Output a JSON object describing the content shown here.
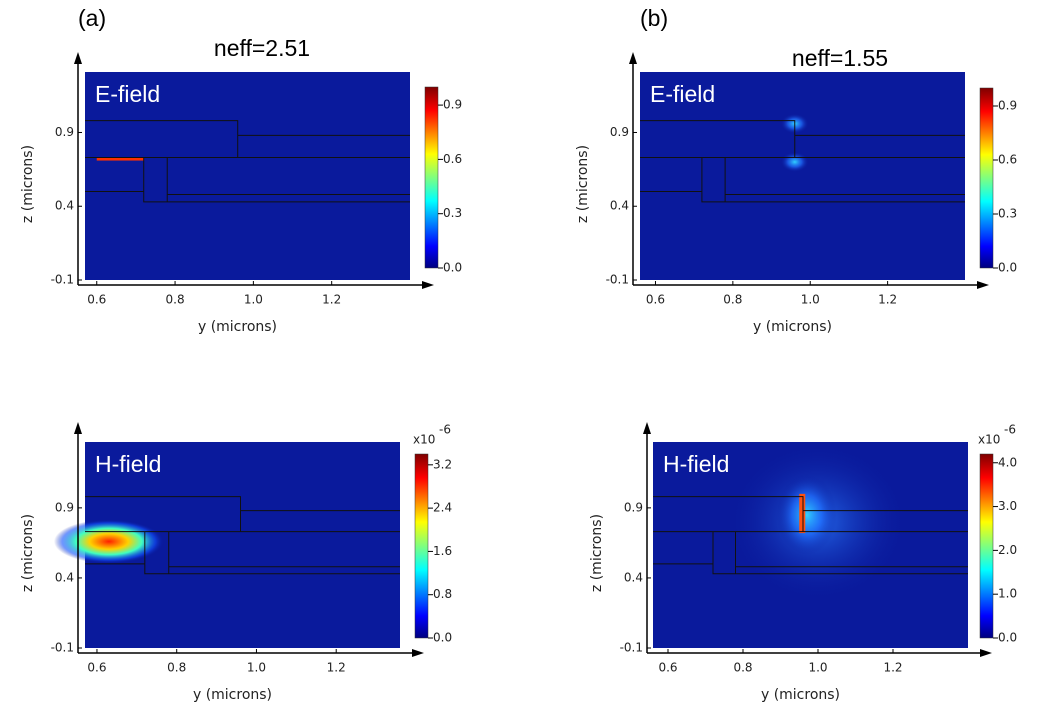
{
  "panels": [
    {
      "label": "(a)",
      "title": "neff=2.51",
      "field": "E-field",
      "x_label": "y  (microns)",
      "y_label": "z  (microns)",
      "xlim": [
        0.57,
        1.4
      ],
      "ylim": [
        -0.1,
        1.31
      ],
      "xticks": [
        0.6,
        0.8,
        {
          "value": 1,
          "label": "1.0"
        },
        1.2
      ],
      "yticks": [
        0.9,
        0.4,
        -0.1
      ],
      "colorbar_lim": [
        0,
        1
      ],
      "colorbar_ticks": [
        {
          "value": 0,
          "label": "0.0"
        },
        0.3,
        0.6,
        0.9
      ]
    },
    {
      "label": "(b)",
      "title": "neff=1.55",
      "field": "E-field",
      "x_label": "y  (microns)",
      "y_label": "z  (microns)",
      "xlim": [
        0.56,
        1.4
      ],
      "ylim": [
        -0.1,
        1.31
      ],
      "xticks": [
        0.6,
        0.8,
        {
          "value": 1,
          "label": "1.0"
        },
        1.2
      ],
      "yticks": [
        0.9,
        0.4,
        -0.1
      ],
      "colorbar_lim": [
        0,
        1
      ],
      "colorbar_ticks": [
        {
          "value": 0,
          "label": "0.0"
        },
        0.3,
        0.6,
        0.9
      ]
    },
    {
      "field": "H-field",
      "x_label": "y  (microns)",
      "y_label": "z  (microns)",
      "xlim": [
        0.57,
        1.36
      ],
      "ylim": [
        -0.1,
        1.37
      ],
      "xticks": [
        0.6,
        0.8,
        {
          "value": 1,
          "label": "1.0"
        },
        1.2
      ],
      "yticks": [
        0.9,
        0.4,
        -0.1
      ],
      "colorbar_lim": [
        0,
        3.4
      ],
      "colorbar_ticks": [
        {
          "value": 0,
          "label": "0.0"
        },
        0.8,
        1.6,
        2.4,
        3.2
      ],
      "colorbar_multiplier": "x10",
      "colorbar_exponent": "-6"
    },
    {
      "field": "H-field",
      "x_label": "y  (microns)",
      "y_label": "z  (microns)",
      "xlim": [
        0.56,
        1.4
      ],
      "ylim": [
        -0.1,
        1.37
      ],
      "xticks": [
        0.6,
        0.8,
        {
          "value": 1,
          "label": "1.0"
        },
        1.2
      ],
      "yticks": [
        0.9,
        0.4,
        -0.1
      ],
      "colorbar_lim": [
        0,
        4.2
      ],
      "colorbar_ticks": [
        {
          "value": 0,
          "label": "0.0"
        },
        {
          "value": 1,
          "label": "1.0"
        },
        {
          "value": 2,
          "label": "2.0"
        },
        {
          "value": 3,
          "label": "3.0"
        },
        {
          "value": 4,
          "label": "4.0"
        }
      ],
      "colorbar_multiplier": "x10",
      "colorbar_exponent": "-6"
    }
  ]
}
